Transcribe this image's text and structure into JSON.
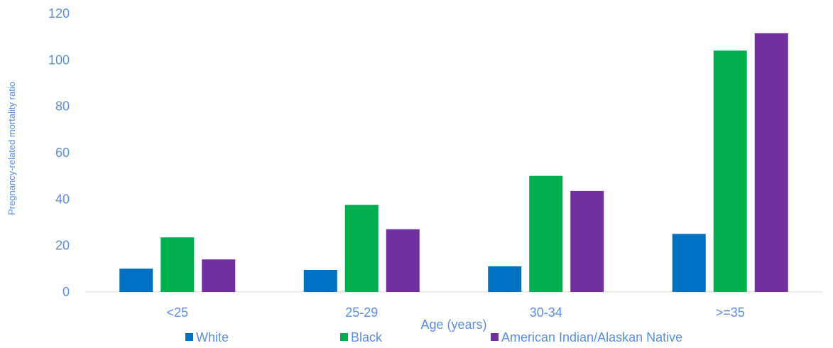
{
  "chart_data": {
    "type": "bar",
    "title": "",
    "xlabel": "Age (years)",
    "ylabel": "Pregnancy-related mortality ratio",
    "categories": [
      "<25",
      "25-29",
      "30-34",
      ">=35"
    ],
    "ylim": [
      0,
      120
    ],
    "yticks": [
      "0",
      "20",
      "40",
      "60",
      "80",
      "100",
      "120"
    ],
    "grid": false,
    "legend_position": "bottom",
    "series": [
      {
        "name": "White",
        "color": "#0070c0",
        "values": [
          10,
          9.5,
          11,
          25
        ]
      },
      {
        "name": "Black",
        "color": "#00b050",
        "values": [
          23.5,
          37.5,
          50,
          104
        ]
      },
      {
        "name": "American Indian/Alaskan Native",
        "color": "#7030a0",
        "values": [
          14,
          27,
          43.5,
          111.5
        ]
      }
    ]
  }
}
